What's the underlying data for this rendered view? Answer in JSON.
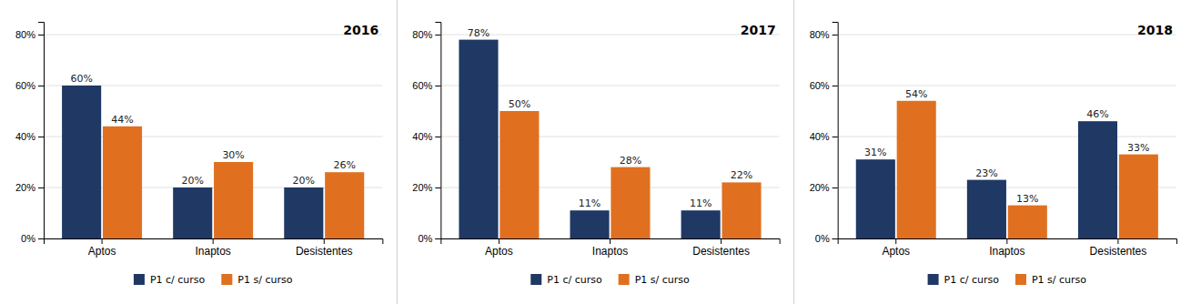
{
  "chart_data": [
    {
      "type": "bar",
      "title": "2016",
      "categories": [
        "Aptos",
        "Inaptos",
        "Desistentes"
      ],
      "series": [
        {
          "name": "P1 c/ curso",
          "color": "#1F3864",
          "values": [
            0.6,
            0.2,
            0.2
          ],
          "value_labels": [
            "60%",
            "20%",
            "20%"
          ]
        },
        {
          "name": "P1 s/ curso",
          "color": "#E07020",
          "values": [
            0.44,
            0.3,
            0.26
          ],
          "value_labels": [
            "44%",
            "30%",
            "26%"
          ]
        }
      ],
      "ylim": [
        0,
        0.85
      ],
      "yticks": [
        {
          "value": 0.0,
          "label": "0%"
        },
        {
          "value": 0.2,
          "label": "20%"
        },
        {
          "value": 0.4,
          "label": "40%"
        },
        {
          "value": 0.6,
          "label": "60%"
        },
        {
          "value": 0.8,
          "label": "80%"
        }
      ],
      "grid": true,
      "legend": "bottom",
      "data_labels": true
    },
    {
      "type": "bar",
      "title": "2017",
      "categories": [
        "Aptos",
        "Inaptos",
        "Desistentes"
      ],
      "series": [
        {
          "name": "P1 c/ curso",
          "color": "#1F3864",
          "values": [
            0.78,
            0.11,
            0.11
          ],
          "value_labels": [
            "78%",
            "11%",
            "11%"
          ]
        },
        {
          "name": "P1 s/ curso",
          "color": "#E07020",
          "values": [
            0.5,
            0.28,
            0.22
          ],
          "value_labels": [
            "50%",
            "28%",
            "22%"
          ]
        }
      ],
      "ylim": [
        0,
        0.85
      ],
      "yticks": [
        {
          "value": 0.0,
          "label": "0%"
        },
        {
          "value": 0.2,
          "label": "20%"
        },
        {
          "value": 0.4,
          "label": "40%"
        },
        {
          "value": 0.6,
          "label": "60%"
        },
        {
          "value": 0.8,
          "label": "80%"
        }
      ],
      "grid": true,
      "legend": "bottom",
      "data_labels": true
    },
    {
      "type": "bar",
      "title": "2018",
      "categories": [
        "Aptos",
        "Inaptos",
        "Desistentes"
      ],
      "series": [
        {
          "name": "P1 c/ curso",
          "color": "#1F3864",
          "values": [
            0.31,
            0.23,
            0.46
          ],
          "value_labels": [
            "31%",
            "23%",
            "46%"
          ]
        },
        {
          "name": "P1 s/ curso",
          "color": "#E07020",
          "values": [
            0.54,
            0.13,
            0.33
          ],
          "value_labels": [
            "54%",
            "13%",
            "33%"
          ]
        }
      ],
      "ylim": [
        0,
        0.85
      ],
      "yticks": [
        {
          "value": 0.0,
          "label": "0%"
        },
        {
          "value": 0.2,
          "label": "20%"
        },
        {
          "value": 0.4,
          "label": "40%"
        },
        {
          "value": 0.6,
          "label": "60%"
        },
        {
          "value": 0.8,
          "label": "80%"
        }
      ],
      "grid": true,
      "legend": "bottom",
      "data_labels": true
    }
  ]
}
